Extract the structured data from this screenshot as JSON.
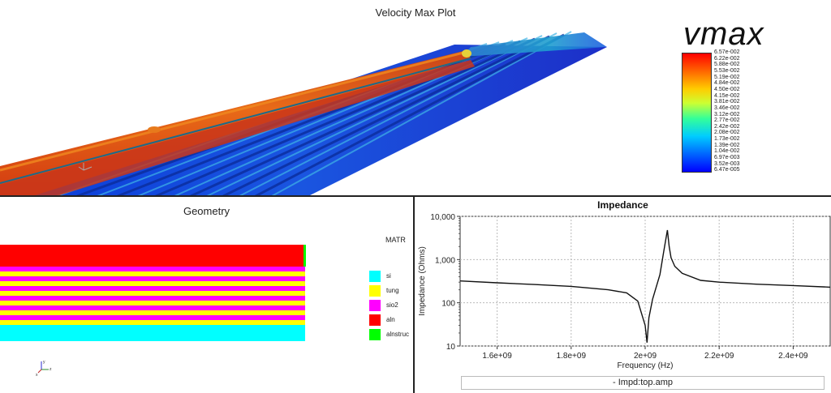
{
  "velocity": {
    "title": "Velocity Max Plot",
    "scalar_name": "vmax",
    "colorbar_labels": [
      "6.57e-002",
      "6.22e-002",
      "5.88e-002",
      "5.53e-002",
      "5.19e-002",
      "4.84e-002",
      "4.50e-002",
      "4.15e-002",
      "3.81e-002",
      "3.46e-002",
      "3.12e-002",
      "2.77e-002",
      "2.42e-002",
      "2.08e-002",
      "1.73e-002",
      "1.39e-002",
      "1.04e-002",
      "6.97e-003",
      "3.52e-003",
      "6.47e-005"
    ],
    "axis_x": "x",
    "axis_y": "y",
    "axis_z": "z"
  },
  "geometry": {
    "title": "Geometry",
    "legend_title": "MATR",
    "materials": [
      {
        "name": "si",
        "color": "#00ffff"
      },
      {
        "name": "tung",
        "color": "#ffff00"
      },
      {
        "name": "sio2",
        "color": "#ff00ff"
      },
      {
        "name": "aln",
        "color": "#ff0000"
      },
      {
        "name": "alnstruc",
        "color": "#00ff00"
      }
    ],
    "axis_x": "x",
    "axis_y": "y",
    "axis_z": "z"
  },
  "impedance": {
    "title": "Impedance",
    "series_label": "- Impd:top.amp",
    "chart_data": {
      "type": "line",
      "title": "Impedance",
      "xlabel": "Frequency (Hz)",
      "ylabel": "Impedance (Ohms)",
      "y_scale": "log",
      "xlim": [
        1500000000.0,
        2500000000.0
      ],
      "ylim": [
        10,
        10000
      ],
      "x_ticks": [
        1600000000.0,
        1800000000.0,
        2000000000.0,
        2200000000.0,
        2400000000.0
      ],
      "x_tick_labels": [
        "1.6e+09",
        "1.8e+09",
        "2e+09",
        "2.2e+09",
        "2.4e+09"
      ],
      "y_ticks": [
        10,
        100,
        1000,
        10000
      ],
      "y_tick_labels": [
        "10",
        "100",
        "1,000",
        "10,000"
      ],
      "grid": true,
      "series": [
        {
          "name": "Impd:top.amp",
          "x": [
            1500000000.0,
            1600000000.0,
            1700000000.0,
            1800000000.0,
            1900000000.0,
            1950000000.0,
            1980000000.0,
            2000000000.0,
            2005000000.0,
            2010000000.0,
            2020000000.0,
            2040000000.0,
            2050000000.0,
            2060000000.0,
            2065000000.0,
            2070000000.0,
            2080000000.0,
            2100000000.0,
            2150000000.0,
            2200000000.0,
            2300000000.0,
            2400000000.0,
            2500000000.0
          ],
          "y": [
            320,
            290,
            265,
            240,
            200,
            170,
            110,
            30,
            12,
            45,
            120,
            450,
            1500,
            4800,
            2000,
            1100,
            700,
            480,
            330,
            300,
            270,
            250,
            230
          ]
        }
      ]
    }
  }
}
